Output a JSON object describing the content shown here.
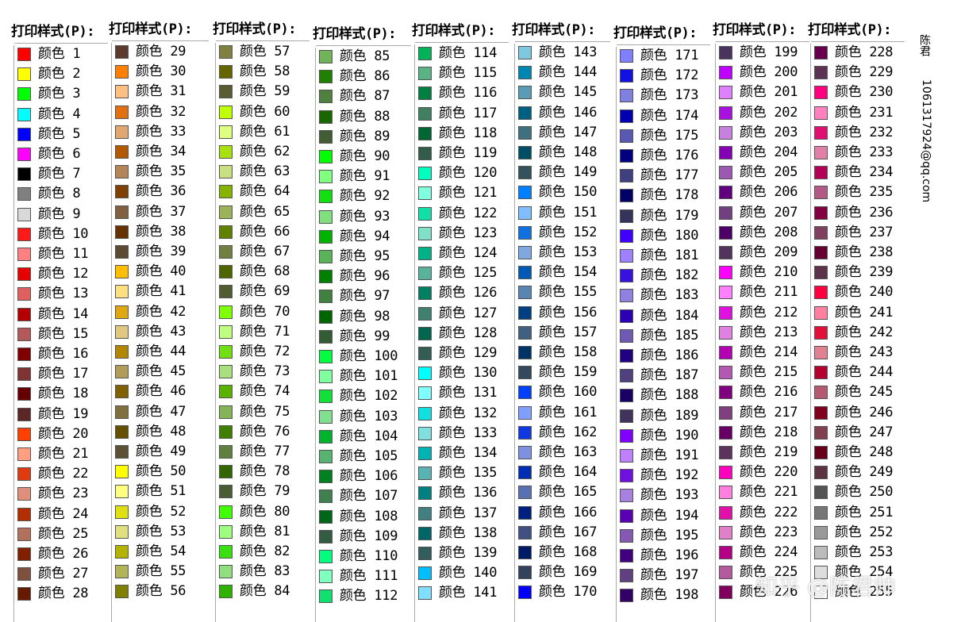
{
  "panel_title": "打印样式(P):",
  "item_prefix": "颜色",
  "author_name": "陈君",
  "author_email": "1061317924@qq.com",
  "watermark": "知乎 @陈君帅",
  "panels": [
    {
      "items": [
        {
          "n": "1",
          "c": "#ff0000"
        },
        {
          "n": "2",
          "c": "#ffff00"
        },
        {
          "n": "3",
          "c": "#00ff00"
        },
        {
          "n": "4",
          "c": "#00ffff"
        },
        {
          "n": "5",
          "c": "#0000ff"
        },
        {
          "n": "6",
          "c": "#ff00ff"
        },
        {
          "n": "7",
          "c": "#000000"
        },
        {
          "n": "8",
          "c": "#808080"
        },
        {
          "n": "9",
          "c": "#d9d9d9"
        },
        {
          "n": "10",
          "c": "#ff1a1a"
        },
        {
          "n": "11",
          "c": "#ff8080"
        },
        {
          "n": "12",
          "c": "#e60000"
        },
        {
          "n": "13",
          "c": "#e06060"
        },
        {
          "n": "14",
          "c": "#b30000"
        },
        {
          "n": "15",
          "c": "#b35959"
        },
        {
          "n": "16",
          "c": "#800000"
        },
        {
          "n": "17",
          "c": "#803333"
        },
        {
          "n": "18",
          "c": "#660000"
        },
        {
          "n": "19",
          "c": "#5c2626"
        },
        {
          "n": "20",
          "c": "#ff4000"
        },
        {
          "n": "21",
          "c": "#ff9f80"
        },
        {
          "n": "22",
          "c": "#e03a10"
        },
        {
          "n": "23",
          "c": "#e0907a"
        },
        {
          "n": "24",
          "c": "#b32d00"
        },
        {
          "n": "25",
          "c": "#b3705a"
        },
        {
          "n": "26",
          "c": "#802000"
        },
        {
          "n": "27",
          "c": "#80503f"
        },
        {
          "n": "28",
          "c": "#661a00"
        }
      ]
    },
    {
      "items": [
        {
          "n": "29",
          "c": "#5c3a2e"
        },
        {
          "n": "30",
          "c": "#ff8000"
        },
        {
          "n": "31",
          "c": "#ffbf80"
        },
        {
          "n": "32",
          "c": "#e07010"
        },
        {
          "n": "33",
          "c": "#e0a870"
        },
        {
          "n": "34",
          "c": "#b35900"
        },
        {
          "n": "35",
          "c": "#b38559"
        },
        {
          "n": "36",
          "c": "#804000"
        },
        {
          "n": "37",
          "c": "#806040"
        },
        {
          "n": "38",
          "c": "#663300"
        },
        {
          "n": "39",
          "c": "#5c4a33"
        },
        {
          "n": "40",
          "c": "#ffbf00"
        },
        {
          "n": "41",
          "c": "#ffdf80"
        },
        {
          "n": "42",
          "c": "#e0a810"
        },
        {
          "n": "43",
          "c": "#e0c880"
        },
        {
          "n": "44",
          "c": "#b38600"
        },
        {
          "n": "45",
          "c": "#b39c59"
        },
        {
          "n": "46",
          "c": "#806000"
        },
        {
          "n": "47",
          "c": "#807040"
        },
        {
          "n": "48",
          "c": "#665000"
        },
        {
          "n": "49",
          "c": "#5c5233"
        },
        {
          "n": "50",
          "c": "#ffff00"
        },
        {
          "n": "51",
          "c": "#ffff80"
        },
        {
          "n": "52",
          "c": "#e0e010"
        },
        {
          "n": "53",
          "c": "#e0e080"
        },
        {
          "n": "54",
          "c": "#b3b300"
        },
        {
          "n": "55",
          "c": "#b3b359"
        },
        {
          "n": "56",
          "c": "#808000"
        }
      ]
    },
    {
      "items": [
        {
          "n": "57",
          "c": "#808040"
        },
        {
          "n": "58",
          "c": "#666600"
        },
        {
          "n": "59",
          "c": "#5c5c33"
        },
        {
          "n": "60",
          "c": "#bfff00"
        },
        {
          "n": "61",
          "c": "#dfff80"
        },
        {
          "n": "62",
          "c": "#a8e010"
        },
        {
          "n": "63",
          "c": "#c8e080"
        },
        {
          "n": "64",
          "c": "#86b300"
        },
        {
          "n": "65",
          "c": "#9cb359"
        },
        {
          "n": "66",
          "c": "#608000"
        },
        {
          "n": "67",
          "c": "#708040"
        },
        {
          "n": "68",
          "c": "#4d6600"
        },
        {
          "n": "69",
          "c": "#525c33"
        },
        {
          "n": "70",
          "c": "#80ff00"
        },
        {
          "n": "71",
          "c": "#bfff80"
        },
        {
          "n": "72",
          "c": "#70e010"
        },
        {
          "n": "73",
          "c": "#a8e080"
        },
        {
          "n": "74",
          "c": "#59b300"
        },
        {
          "n": "75",
          "c": "#85b359"
        },
        {
          "n": "76",
          "c": "#408000"
        },
        {
          "n": "77",
          "c": "#608040"
        },
        {
          "n": "78",
          "c": "#336600"
        },
        {
          "n": "79",
          "c": "#4a5c33"
        },
        {
          "n": "80",
          "c": "#40ff00"
        },
        {
          "n": "81",
          "c": "#9fff80"
        },
        {
          "n": "82",
          "c": "#38e010"
        },
        {
          "n": "83",
          "c": "#90e080"
        },
        {
          "n": "84",
          "c": "#2db300"
        }
      ]
    },
    {
      "items": [
        {
          "n": "85",
          "c": "#70b359"
        },
        {
          "n": "86",
          "c": "#208000"
        },
        {
          "n": "87",
          "c": "#508040"
        },
        {
          "n": "88",
          "c": "#1a6600"
        },
        {
          "n": "89",
          "c": "#425c33"
        },
        {
          "n": "90",
          "c": "#00ff00"
        },
        {
          "n": "91",
          "c": "#80ff80"
        },
        {
          "n": "92",
          "c": "#10e010"
        },
        {
          "n": "93",
          "c": "#80e080"
        },
        {
          "n": "94",
          "c": "#00b300"
        },
        {
          "n": "95",
          "c": "#59b359"
        },
        {
          "n": "96",
          "c": "#008000"
        },
        {
          "n": "97",
          "c": "#408040"
        },
        {
          "n": "98",
          "c": "#006600"
        },
        {
          "n": "99",
          "c": "#335c33"
        },
        {
          "n": "100",
          "c": "#00ff40"
        },
        {
          "n": "101",
          "c": "#80ff9f"
        },
        {
          "n": "102",
          "c": "#10e038"
        },
        {
          "n": "103",
          "c": "#80e090"
        },
        {
          "n": "104",
          "c": "#00b32d"
        },
        {
          "n": "105",
          "c": "#59b370"
        },
        {
          "n": "106",
          "c": "#008020"
        },
        {
          "n": "107",
          "c": "#408050"
        },
        {
          "n": "108",
          "c": "#00661a"
        },
        {
          "n": "109",
          "c": "#335c42"
        },
        {
          "n": "110",
          "c": "#00ff80"
        },
        {
          "n": "111",
          "c": "#80ffbf"
        },
        {
          "n": "112",
          "c": "#10e070"
        }
      ]
    },
    {
      "items": [
        {
          "n": "114",
          "c": "#00b359"
        },
        {
          "n": "115",
          "c": "#59b385"
        },
        {
          "n": "116",
          "c": "#008040"
        },
        {
          "n": "117",
          "c": "#408060"
        },
        {
          "n": "118",
          "c": "#006633"
        },
        {
          "n": "119",
          "c": "#335c4a"
        },
        {
          "n": "120",
          "c": "#00ffbf"
        },
        {
          "n": "121",
          "c": "#80ffdf"
        },
        {
          "n": "122",
          "c": "#10e0a8"
        },
        {
          "n": "123",
          "c": "#80e0c8"
        },
        {
          "n": "124",
          "c": "#00b386"
        },
        {
          "n": "125",
          "c": "#59b39c"
        },
        {
          "n": "126",
          "c": "#008060"
        },
        {
          "n": "127",
          "c": "#408070"
        },
        {
          "n": "128",
          "c": "#00664d"
        },
        {
          "n": "129",
          "c": "#335c52"
        },
        {
          "n": "130",
          "c": "#00ffff"
        },
        {
          "n": "131",
          "c": "#80ffff"
        },
        {
          "n": "132",
          "c": "#10e0e0"
        },
        {
          "n": "133",
          "c": "#80e0e0"
        },
        {
          "n": "134",
          "c": "#00b3b3"
        },
        {
          "n": "135",
          "c": "#59b3b3"
        },
        {
          "n": "136",
          "c": "#008080"
        },
        {
          "n": "137",
          "c": "#408080"
        },
        {
          "n": "138",
          "c": "#006666"
        },
        {
          "n": "139",
          "c": "#335c5c"
        },
        {
          "n": "140",
          "c": "#00bfff"
        },
        {
          "n": "141",
          "c": "#80dfff"
        }
      ]
    },
    {
      "items": [
        {
          "n": "143",
          "c": "#80c8e0"
        },
        {
          "n": "144",
          "c": "#0086b3"
        },
        {
          "n": "145",
          "c": "#599cb3"
        },
        {
          "n": "146",
          "c": "#006080"
        },
        {
          "n": "147",
          "c": "#407080"
        },
        {
          "n": "148",
          "c": "#004d66"
        },
        {
          "n": "149",
          "c": "#33525c"
        },
        {
          "n": "150",
          "c": "#0080ff"
        },
        {
          "n": "151",
          "c": "#80bfff"
        },
        {
          "n": "152",
          "c": "#1070e0"
        },
        {
          "n": "153",
          "c": "#80a8e0"
        },
        {
          "n": "154",
          "c": "#0059b3"
        },
        {
          "n": "155",
          "c": "#5985b3"
        },
        {
          "n": "156",
          "c": "#004080"
        },
        {
          "n": "157",
          "c": "#406080"
        },
        {
          "n": "158",
          "c": "#003366"
        },
        {
          "n": "159",
          "c": "#334a5c"
        },
        {
          "n": "160",
          "c": "#0040ff"
        },
        {
          "n": "161",
          "c": "#809fff"
        },
        {
          "n": "162",
          "c": "#1038e0"
        },
        {
          "n": "163",
          "c": "#8090e0"
        },
        {
          "n": "164",
          "c": "#002db3"
        },
        {
          "n": "165",
          "c": "#5970b3"
        },
        {
          "n": "166",
          "c": "#002080"
        },
        {
          "n": "167",
          "c": "#405080"
        },
        {
          "n": "168",
          "c": "#001a66"
        },
        {
          "n": "169",
          "c": "#33425c"
        },
        {
          "n": "170",
          "c": "#0000ff"
        }
      ]
    },
    {
      "items": [
        {
          "n": "171",
          "c": "#8080ff"
        },
        {
          "n": "172",
          "c": "#1010e0"
        },
        {
          "n": "173",
          "c": "#8080e0"
        },
        {
          "n": "174",
          "c": "#0000b3"
        },
        {
          "n": "175",
          "c": "#5959b3"
        },
        {
          "n": "176",
          "c": "#000080"
        },
        {
          "n": "177",
          "c": "#404080"
        },
        {
          "n": "178",
          "c": "#000066"
        },
        {
          "n": "179",
          "c": "#33335c"
        },
        {
          "n": "180",
          "c": "#4000ff"
        },
        {
          "n": "181",
          "c": "#9f80ff"
        },
        {
          "n": "182",
          "c": "#3810e0"
        },
        {
          "n": "183",
          "c": "#9080e0"
        },
        {
          "n": "184",
          "c": "#2d00b3"
        },
        {
          "n": "185",
          "c": "#7059b3"
        },
        {
          "n": "186",
          "c": "#200080"
        },
        {
          "n": "187",
          "c": "#504080"
        },
        {
          "n": "188",
          "c": "#1a0066"
        },
        {
          "n": "189",
          "c": "#42335c"
        },
        {
          "n": "190",
          "c": "#8000ff"
        },
        {
          "n": "191",
          "c": "#bf80ff"
        },
        {
          "n": "192",
          "c": "#7010e0"
        },
        {
          "n": "193",
          "c": "#a880e0"
        },
        {
          "n": "194",
          "c": "#5900b3"
        },
        {
          "n": "195",
          "c": "#8559b3"
        },
        {
          "n": "196",
          "c": "#400080"
        },
        {
          "n": "197",
          "c": "#604080"
        },
        {
          "n": "198",
          "c": "#330066"
        }
      ]
    },
    {
      "items": [
        {
          "n": "199",
          "c": "#4a335c"
        },
        {
          "n": "200",
          "c": "#bf00ff"
        },
        {
          "n": "201",
          "c": "#df80ff"
        },
        {
          "n": "202",
          "c": "#a810e0"
        },
        {
          "n": "203",
          "c": "#c880e0"
        },
        {
          "n": "204",
          "c": "#8600b3"
        },
        {
          "n": "205",
          "c": "#9c59b3"
        },
        {
          "n": "206",
          "c": "#600080"
        },
        {
          "n": "207",
          "c": "#704080"
        },
        {
          "n": "208",
          "c": "#4d0066"
        },
        {
          "n": "209",
          "c": "#52335c"
        },
        {
          "n": "210",
          "c": "#ff00ff"
        },
        {
          "n": "211",
          "c": "#ff80ff"
        },
        {
          "n": "212",
          "c": "#e010e0"
        },
        {
          "n": "213",
          "c": "#e080e0"
        },
        {
          "n": "214",
          "c": "#b300b3"
        },
        {
          "n": "215",
          "c": "#b359b3"
        },
        {
          "n": "216",
          "c": "#800080"
        },
        {
          "n": "217",
          "c": "#804080"
        },
        {
          "n": "218",
          "c": "#660066"
        },
        {
          "n": "219",
          "c": "#5c335c"
        },
        {
          "n": "220",
          "c": "#ff00bf"
        },
        {
          "n": "221",
          "c": "#ff80df"
        },
        {
          "n": "222",
          "c": "#e010a8"
        },
        {
          "n": "223",
          "c": "#e080c8"
        },
        {
          "n": "224",
          "c": "#b30086"
        },
        {
          "n": "225",
          "c": "#b3599c"
        },
        {
          "n": "226",
          "c": "#800060"
        }
      ]
    },
    {
      "items": [
        {
          "n": "228",
          "c": "#66004d"
        },
        {
          "n": "229",
          "c": "#5c3352"
        },
        {
          "n": "230",
          "c": "#ff0080"
        },
        {
          "n": "231",
          "c": "#ff80bf"
        },
        {
          "n": "232",
          "c": "#e01070"
        },
        {
          "n": "233",
          "c": "#e080a8"
        },
        {
          "n": "234",
          "c": "#b30059"
        },
        {
          "n": "235",
          "c": "#b35985"
        },
        {
          "n": "236",
          "c": "#800040"
        },
        {
          "n": "237",
          "c": "#804060"
        },
        {
          "n": "238",
          "c": "#660033"
        },
        {
          "n": "239",
          "c": "#5c334a"
        },
        {
          "n": "240",
          "c": "#ff0040"
        },
        {
          "n": "241",
          "c": "#ff809f"
        },
        {
          "n": "242",
          "c": "#e01038"
        },
        {
          "n": "243",
          "c": "#e08090"
        },
        {
          "n": "244",
          "c": "#b3002d"
        },
        {
          "n": "245",
          "c": "#b35970"
        },
        {
          "n": "246",
          "c": "#800020"
        },
        {
          "n": "247",
          "c": "#804050"
        },
        {
          "n": "248",
          "c": "#66001a"
        },
        {
          "n": "249",
          "c": "#5c3342"
        },
        {
          "n": "250",
          "c": "#545454"
        },
        {
          "n": "251",
          "c": "#767676"
        },
        {
          "n": "252",
          "c": "#999999"
        },
        {
          "n": "253",
          "c": "#bbbbbb"
        },
        {
          "n": "254",
          "c": "#dddddd"
        },
        {
          "n": "255",
          "c": "#ffffff"
        }
      ]
    }
  ]
}
